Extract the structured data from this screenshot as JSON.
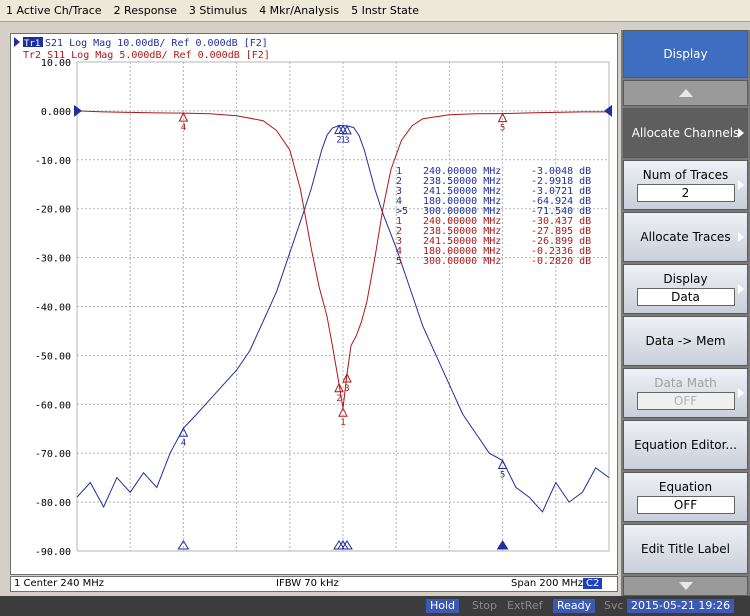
{
  "menu": [
    "1 Active Ch/Trace",
    "2 Response",
    "3 Stimulus",
    "4 Mkr/Analysis",
    "5 Instr State"
  ],
  "trace_headers": [
    {
      "id": "Tr1",
      "label": " S21 Log Mag 10.00dB/ Ref 0.000dB [F2]",
      "color": "#1f2fa0"
    },
    {
      "id": "Tr2",
      "label": "Tr2 S11 Log Mag 5.000dB/ Ref 0.000dB [F2]",
      "color": "#b01818"
    }
  ],
  "y_ticks": [
    "10.00",
    "0.000",
    "-10.00",
    "-20.00",
    "-30.00",
    "-40.00",
    "-50.00",
    "-60.00",
    "-70.00",
    "-80.00",
    "-90.00"
  ],
  "marker_table": [
    {
      "num": "1",
      "prefix": " ",
      "freq": "240.00000 MHz",
      "val": "-3.0048 dB",
      "trace": "Tr1"
    },
    {
      "num": "2",
      "prefix": " ",
      "freq": "238.50000 MHz",
      "val": "-2.9918 dB",
      "trace": "Tr1"
    },
    {
      "num": "3",
      "prefix": " ",
      "freq": "241.50000 MHz",
      "val": "-3.0721 dB",
      "trace": "Tr1"
    },
    {
      "num": "4",
      "prefix": " ",
      "freq": "180.00000 MHz",
      "val": "-64.924 dB",
      "trace": "Tr1"
    },
    {
      "num": "5",
      "prefix": ">",
      "freq": "300.00000 MHz",
      "val": "-71.540 dB",
      "trace": "Tr1"
    },
    {
      "num": "1",
      "prefix": " ",
      "freq": "240.00000 MHz",
      "val": "-30.437 dB",
      "trace": "Tr2"
    },
    {
      "num": "2",
      "prefix": " ",
      "freq": "238.50000 MHz",
      "val": "-27.895 dB",
      "trace": "Tr2"
    },
    {
      "num": "3",
      "prefix": " ",
      "freq": "241.50000 MHz",
      "val": "-26.899 dB",
      "trace": "Tr2"
    },
    {
      "num": "4",
      "prefix": " ",
      "freq": "180.00000 MHz",
      "val": "-0.2336 dB",
      "trace": "Tr2"
    },
    {
      "num": "5",
      "prefix": " ",
      "freq": "300.00000 MHz",
      "val": "-0.2820 dB",
      "trace": "Tr2"
    }
  ],
  "channel_status": {
    "center": "1 Center 240 MHz",
    "ifbw": "IFBW 70 kHz",
    "span": "Span 200 MHz",
    "badge": "C2"
  },
  "softkeys": {
    "title": "Display",
    "allocate_channels": "Allocate Channels",
    "num_traces_label": "Num of Traces",
    "num_traces_value": "2",
    "allocate_traces": "Allocate Traces",
    "display_label": "Display",
    "display_value": "Data",
    "data_mem": "Data -> Mem",
    "data_math_label": "Data Math",
    "data_math_value": "OFF",
    "equation_editor": "Equation Editor...",
    "equation_label": "Equation",
    "equation_value": "OFF",
    "edit_title": "Edit Title Label"
  },
  "status_bar": {
    "hold": "Hold",
    "stop": "Stop",
    "extref": "ExtRef",
    "ready": "Ready",
    "svc": "Svc",
    "datetime": "2015-05-21 19:26"
  },
  "colors": {
    "trace1": "#1f2fa0",
    "trace2": "#b01818",
    "grid": "#b4b4b4"
  },
  "chart_data": {
    "type": "line",
    "x_range_mhz": [
      140,
      340
    ],
    "series": [
      {
        "name": "Tr1 S21",
        "unit": "dB",
        "ylim": [
          -90,
          10
        ],
        "x": [
          140,
          145,
          150,
          155,
          160,
          165,
          170,
          175,
          180,
          185,
          190,
          195,
          200,
          205,
          210,
          215,
          220,
          225,
          228,
          230,
          232,
          234,
          236,
          238.5,
          240,
          241.5,
          244,
          246,
          248,
          250,
          252,
          255,
          260,
          265,
          270,
          275,
          280,
          285,
          290,
          295,
          300,
          305,
          310,
          315,
          320,
          325,
          330,
          335,
          340
        ],
        "y": [
          -79,
          -76,
          -81,
          -75,
          -78,
          -74,
          -77,
          -70,
          -64.9,
          -62,
          -59,
          -56,
          -53,
          -49,
          -43,
          -37,
          -29,
          -21,
          -16,
          -12,
          -8,
          -5,
          -3.5,
          -2.99,
          -3.0,
          -3.07,
          -3.4,
          -5,
          -8,
          -12,
          -16,
          -21,
          -28,
          -36,
          -44,
          -50,
          -56,
          -62,
          -66,
          -70,
          -71.5,
          -77,
          -79,
          -82,
          -76,
          -80,
          -78,
          -73,
          -75
        ]
      },
      {
        "name": "Tr2 S11",
        "unit": "dB",
        "ylim": [
          -45,
          5
        ],
        "x": [
          140,
          150,
          160,
          170,
          180,
          190,
          200,
          210,
          215,
          220,
          224,
          228,
          231,
          234,
          236,
          238.5,
          240,
          241.5,
          243,
          245,
          247,
          249,
          252,
          255,
          258,
          262,
          266,
          270,
          280,
          290,
          300,
          310,
          320,
          330,
          340
        ],
        "y": [
          0,
          -0.1,
          -0.15,
          -0.2,
          -0.23,
          -0.3,
          -0.5,
          -1.0,
          -2.0,
          -4.0,
          -8.0,
          -14.0,
          -18.0,
          -21.0,
          -24.0,
          -27.9,
          -30.4,
          -26.9,
          -24.0,
          -23.0,
          -21.5,
          -19.5,
          -15.0,
          -10.0,
          -6.0,
          -3.0,
          -1.5,
          -0.8,
          -0.4,
          -0.3,
          -0.28,
          -0.2,
          -0.15,
          -0.1,
          -0.1
        ]
      }
    ],
    "markers": [
      {
        "n": 1,
        "x": 240
      },
      {
        "n": 2,
        "x": 238.5
      },
      {
        "n": 3,
        "x": 241.5
      },
      {
        "n": 4,
        "x": 180
      },
      {
        "n": 5,
        "x": 300
      }
    ]
  }
}
